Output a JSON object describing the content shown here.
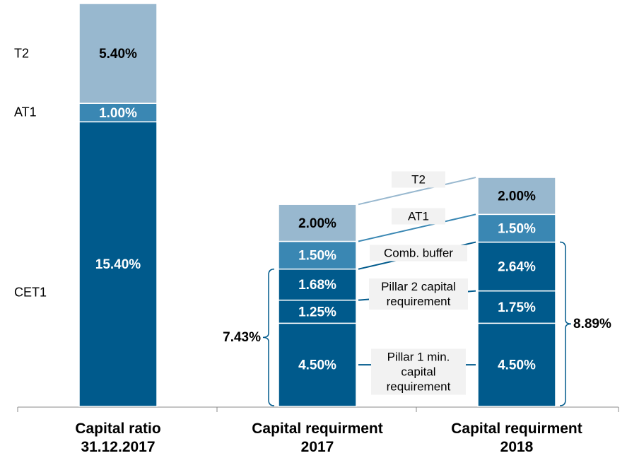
{
  "chart_data": {
    "type": "stacked_bar",
    "categories": [
      "Capital ratio 31.12.2017",
      "Capital requirment 2017",
      "Capital requirment 2018"
    ],
    "series": [
      {
        "name": "CET1",
        "color": "#005a8c",
        "label_color": "#ffffff",
        "values": [
          15.4,
          null,
          null
        ],
        "value_labels": [
          "15.40%",
          null,
          null
        ]
      },
      {
        "name": "Pillar 1 min. capital requirement",
        "color": "#005a8c",
        "label_color": "#ffffff",
        "values": [
          null,
          4.5,
          4.5
        ],
        "value_labels": [
          null,
          "4.50%",
          "4.50%"
        ]
      },
      {
        "name": "Pillar 2 capital requirement",
        "color": "#005a8c",
        "label_color": "#ffffff",
        "values": [
          null,
          1.25,
          1.75
        ],
        "value_labels": [
          null,
          "1.25%",
          "1.75%"
        ]
      },
      {
        "name": "Comb. buffer",
        "color": "#005a8c",
        "label_color": "#ffffff",
        "values": [
          null,
          1.68,
          2.64
        ],
        "value_labels": [
          null,
          "1.68%",
          "2.64%"
        ]
      },
      {
        "name": "AT1",
        "color": "#3a87b3",
        "label_color": "#ffffff",
        "values": [
          1.0,
          1.5,
          1.5
        ],
        "value_labels": [
          "1.00%",
          "1.50%",
          "1.50%"
        ]
      },
      {
        "name": "T2",
        "color": "#98b8cf",
        "label_color": "#000000",
        "values": [
          5.4,
          2.0,
          2.0
        ],
        "value_labels": [
          "5.40%",
          "2.00%",
          "2.00%"
        ]
      }
    ],
    "bracket_values": [
      null,
      7.43,
      8.89
    ],
    "bracket_labels": [
      null,
      "7.43%",
      "8.89%"
    ]
  }
}
